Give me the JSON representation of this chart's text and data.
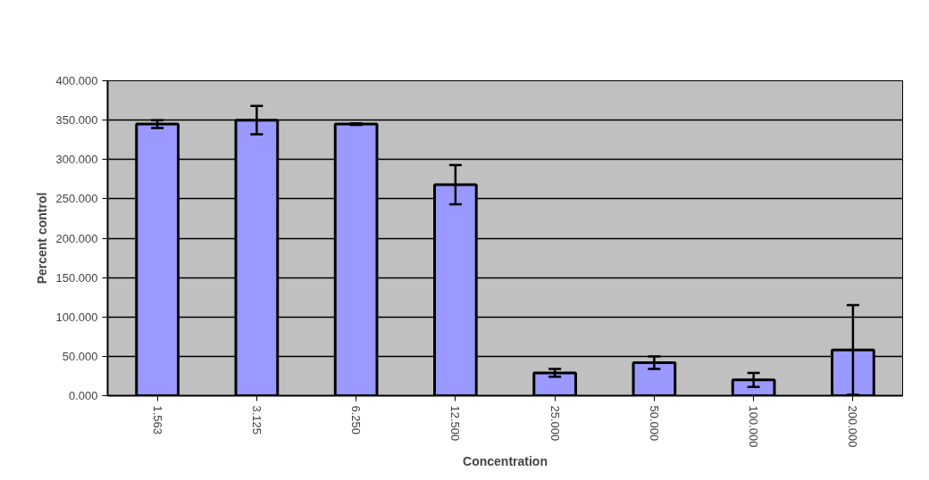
{
  "chart_data": {
    "type": "bar",
    "xlabel": "Concentration",
    "ylabel": "Percent control",
    "categories": [
      "1.563",
      "3.125",
      "6.250",
      "12.500",
      "25.000",
      "50.000",
      "100.000",
      "200.000"
    ],
    "values": [
      345,
      350,
      345,
      268,
      29,
      42,
      20,
      58
    ],
    "errors": [
      5,
      18,
      1,
      25,
      5,
      8,
      9,
      57
    ],
    "color": "#9999ff",
    "ylim": [
      0,
      400
    ],
    "yticks": [
      {
        "value": 0,
        "label": "0.000"
      },
      {
        "value": 50,
        "label": "50.000"
      },
      {
        "value": 100,
        "label": "100.000"
      },
      {
        "value": 150,
        "label": "150.000"
      },
      {
        "value": 200,
        "label": "200.000"
      },
      {
        "value": 250,
        "label": "250.000"
      },
      {
        "value": 300,
        "label": "300.000"
      },
      {
        "value": 350,
        "label": "350.000"
      },
      {
        "value": 400,
        "label": "400.000"
      }
    ],
    "grid": "y"
  }
}
